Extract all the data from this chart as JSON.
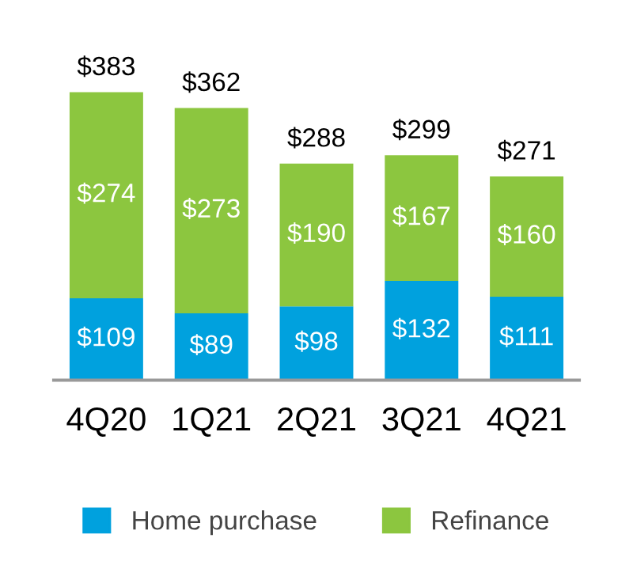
{
  "chart_data": {
    "type": "bar",
    "stacked": true,
    "categories": [
      "4Q20",
      "1Q21",
      "2Q21",
      "3Q21",
      "4Q21"
    ],
    "series": [
      {
        "name": "Home purchase",
        "color": "#00a1de",
        "values": [
          109,
          89,
          98,
          132,
          111
        ],
        "value_labels": [
          "$109",
          "$89",
          "$98",
          "$132",
          "$111"
        ]
      },
      {
        "name": "Refinance",
        "color": "#8cc63f",
        "values": [
          274,
          273,
          190,
          167,
          160
        ],
        "value_labels": [
          "$274",
          "$273",
          "$190",
          "$167",
          "$160"
        ]
      }
    ],
    "totals": [
      "$383",
      "$362",
      "$288",
      "$299",
      "$271"
    ],
    "legend": "bottom",
    "grid": false
  }
}
